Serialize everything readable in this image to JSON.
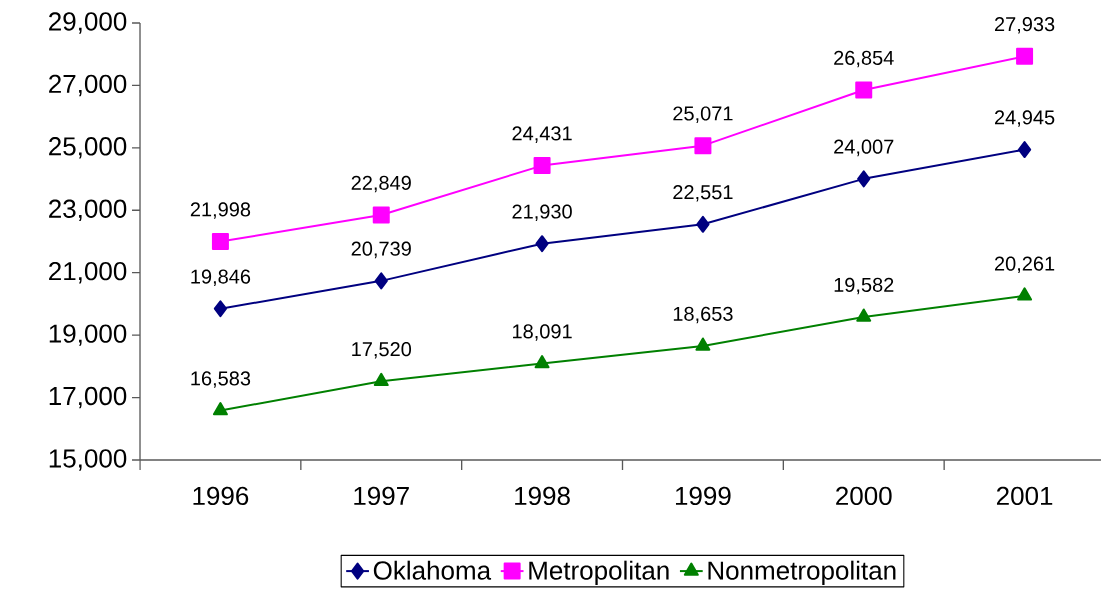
{
  "chart_data": {
    "type": "line",
    "categories": [
      "1996",
      "1997",
      "1998",
      "1999",
      "2000",
      "2001"
    ],
    "series": [
      {
        "name": "Oklahoma",
        "color": "#000080",
        "marker": "diamond",
        "values": [
          19846,
          20739,
          21930,
          22551,
          24007,
          24945
        ],
        "value_labels": [
          "19,846",
          "20,739",
          "21,930",
          "22,551",
          "24,007",
          "24,945"
        ]
      },
      {
        "name": "Metropolitan",
        "color": "#ff00ff",
        "marker": "square",
        "values": [
          21998,
          22849,
          24431,
          25071,
          26854,
          27933
        ],
        "value_labels": [
          "21,998",
          "22,849",
          "24,431",
          "25,071",
          "26,854",
          "27,933"
        ]
      },
      {
        "name": "Nonmetropolitan",
        "color": "#008000",
        "marker": "triangle",
        "values": [
          16583,
          17520,
          18091,
          18653,
          19582,
          20261
        ],
        "value_labels": [
          "16,583",
          "17,520",
          "18,091",
          "18,653",
          "19,582",
          "20,261"
        ]
      }
    ],
    "ylim": [
      15000,
      29000
    ],
    "yticks": [
      {
        "value": 15000,
        "label": "15,000"
      },
      {
        "value": 17000,
        "label": "17,000"
      },
      {
        "value": 19000,
        "label": "19,000"
      },
      {
        "value": 21000,
        "label": "21,000"
      },
      {
        "value": 23000,
        "label": "23,000"
      },
      {
        "value": 25000,
        "label": "25,000"
      },
      {
        "value": 27000,
        "label": "27,000"
      },
      {
        "value": 29000,
        "label": "29,000"
      }
    ],
    "grid": false,
    "legend": "bottom",
    "line_style": "solid"
  }
}
